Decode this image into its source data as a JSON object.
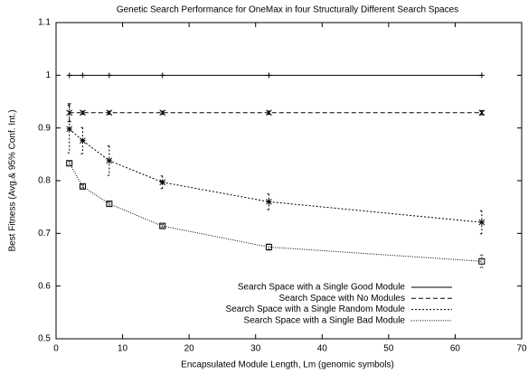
{
  "chart_data": {
    "type": "line",
    "title": "Genetic Search Performance for OneMax in four Structurally Different Search Spaces",
    "xlabel": "Encapsulated Module Length, Lm (genomic symbols)",
    "ylabel": "Best Fitness (Avg.& 95% Conf. Int.)",
    "x": [
      2,
      4,
      8,
      16,
      32,
      64
    ],
    "series": [
      {
        "name": "Search Space with a Single Good Module",
        "color": "#000000",
        "dash": "none",
        "marker": "plus",
        "values": [
          1,
          1,
          1,
          1,
          1,
          1
        ],
        "errors": [
          0,
          0,
          0,
          0,
          0,
          0
        ]
      },
      {
        "name": "Search Space with No Modules",
        "color": "#000000",
        "dash": "5,3",
        "marker": "cross",
        "values": [
          0.929,
          0.929,
          0.929,
          0.929,
          0.929,
          0.929
        ],
        "errors": [
          0.017,
          0.003,
          0.003,
          0.003,
          0.003,
          0.004
        ]
      },
      {
        "name": "Search Space with a Single Random Module",
        "color": "#000000",
        "dash": "2,2",
        "marker": "star",
        "values": [
          0.898,
          0.876,
          0.838,
          0.797,
          0.76,
          0.721
        ],
        "errors": [
          0.045,
          0.025,
          0.028,
          0.012,
          0.015,
          0.022
        ]
      },
      {
        "name": "Search Space with a Single Bad Module",
        "color": "#000000",
        "dash": "1,1.5",
        "marker": "square",
        "values": [
          0.833,
          0.789,
          0.756,
          0.714,
          0.674,
          0.647
        ],
        "errors": [
          0.004,
          0.003,
          0.004,
          0.003,
          0.006,
          0.012
        ]
      }
    ],
    "xlim": [
      0,
      70
    ],
    "xticks": [
      0,
      10,
      20,
      30,
      40,
      50,
      60,
      70
    ],
    "ylim": [
      0.5,
      1.1
    ],
    "yticks": [
      0.5,
      0.6,
      0.7,
      0.8,
      0.9,
      1,
      1.1
    ],
    "grid": false,
    "legend": "lower right"
  }
}
